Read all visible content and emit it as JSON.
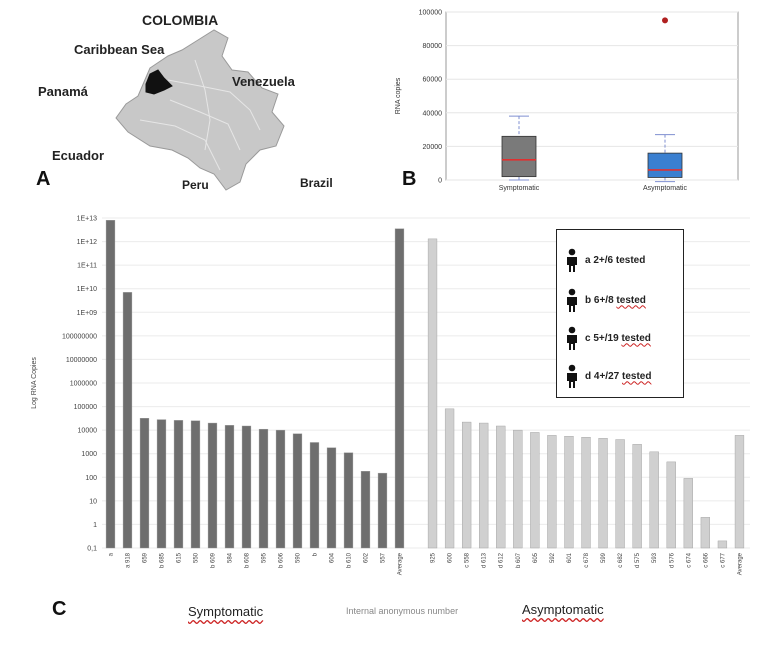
{
  "panel_a": {
    "letter": "A",
    "labels": {
      "country": "COLOMBIA",
      "caribbean": "Caribbean Sea",
      "panama": "Panamá",
      "venezuela": "Venezuela",
      "ecuador": "Ecuador",
      "peru": "Peru",
      "brazil": "Brazil"
    }
  },
  "panel_b": {
    "letter": "B"
  },
  "panel_c": {
    "letter": "C",
    "legend": [
      {
        "code": "a",
        "text": "2+/6",
        "suffix": "tested"
      },
      {
        "code": "b",
        "text": "6+/8",
        "suffix": "tested"
      },
      {
        "code": "c",
        "text": "5+/19",
        "suffix": "tested"
      },
      {
        "code": "d",
        "text": "4+/27",
        "suffix": "tested"
      }
    ],
    "footer": {
      "left": "Symptomatic",
      "middle": "Internal anonymous number",
      "right": "Asymptomatic"
    }
  },
  "chart_data": [
    {
      "type": "box",
      "ylabel": "RNA copies",
      "ylim": [
        0,
        100000
      ],
      "yticks": [
        "0",
        "20000",
        "40000",
        "60000",
        "80000",
        "100000"
      ],
      "categories": [
        "Symptomatic",
        "Asymptomatic"
      ],
      "boxes": [
        {
          "name": "Symptomatic",
          "min": 0,
          "q1": 2000,
          "median": 12000,
          "q3": 26000,
          "max": 38000,
          "color": "#7a7a7a",
          "outliers": []
        },
        {
          "name": "Asymptomatic",
          "min": -1000,
          "q1": 1500,
          "median": 6000,
          "q3": 16000,
          "max": 27000,
          "color": "#3a7fd0",
          "outliers": [
            95000
          ]
        }
      ],
      "median_color": "#e03030",
      "outlier_color": "#b02020"
    },
    {
      "type": "bar",
      "scale": "log",
      "ylabel": "Log RNA Copies",
      "ylim": [
        0.1,
        10000000000000
      ],
      "yticks": [
        "0,1",
        "1",
        "10",
        "100",
        "1000",
        "10000",
        "100000",
        "1000000",
        "10000000",
        "100000000",
        "1E+09",
        "1E+10",
        "1E+11",
        "1E+12",
        "1E+13"
      ],
      "series": [
        {
          "name": "Symptomatic",
          "color": "#6e6e6e",
          "categories": [
            "a",
            "a 918",
            "659",
            "b 685",
            "615",
            "550",
            "b 609",
            "584",
            "b 608",
            "595",
            "b 606",
            "590",
            "b",
            "604",
            "b 610",
            "602",
            "557",
            "Average"
          ],
          "values": [
            8000000000000,
            7000000000,
            32000,
            28000,
            26000,
            25000,
            20000,
            16000,
            15000,
            11000,
            10000,
            7000,
            3000,
            1800,
            1100,
            180,
            150,
            3500000000000
          ]
        },
        {
          "name": "Asymptomatic",
          "color": "#d0d0d0",
          "categories": [
            "925",
            "600",
            "c 558",
            "d 613",
            "d 612",
            "b 607",
            "605",
            "592",
            "601",
            "c 678",
            "599",
            "c 682",
            "d 575",
            "593",
            "d 576",
            "c 674",
            "c 666",
            "c 677",
            "Average"
          ],
          "values": [
            1300000000000,
            80000,
            22000,
            20000,
            15000,
            10000,
            8000,
            6000,
            5500,
            5000,
            4500,
            4000,
            2500,
            1200,
            450,
            90,
            2,
            0.2,
            6000
          ]
        }
      ]
    }
  ]
}
